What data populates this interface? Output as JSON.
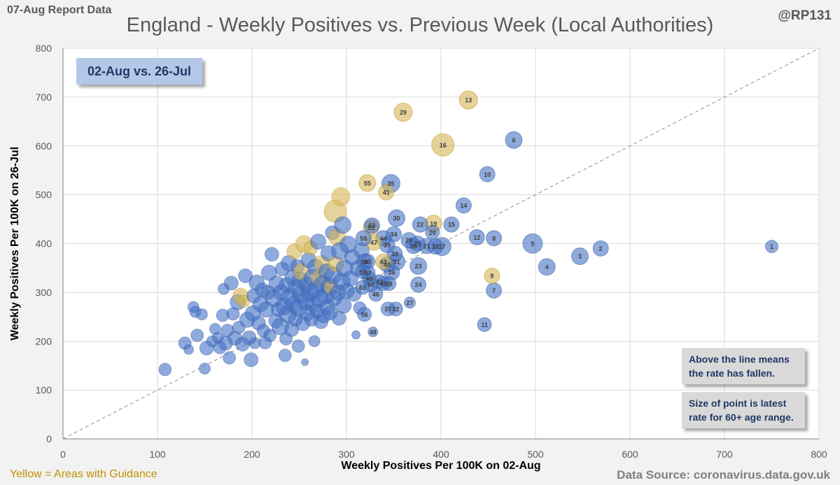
{
  "header": {
    "report_label": "07-Aug Report Data",
    "title": "England - Weekly Positives vs. Previous Week (Local Authorities)",
    "handle": "@RP131"
  },
  "annotations": {
    "period": "02-Aug vs. 26-Jul",
    "above_line_note": "Above the line means the rate has fallen.",
    "size_note": "Size of point is latest rate for 60+ age range."
  },
  "footer": {
    "legend_yellow": "Yellow = Areas with Guidance",
    "data_source": "Data Source: coronavirus.data.gov.uk"
  },
  "colors": {
    "blue": "#4472c4",
    "blue_dark": "#2f5597",
    "yellow": "#d6b656",
    "grid": "#d9d9d9",
    "axis_text": "#595959"
  },
  "chart_data": {
    "type": "scatter",
    "title": "England - Weekly Positives vs. Previous Week (Local Authorities)",
    "xlabel": "Weekly Positives Per 100K on 02-Aug",
    "ylabel": "Weekly Positives Per 100K on 26-Jul",
    "xlim": [
      0,
      800
    ],
    "ylim": [
      0,
      800
    ],
    "xticks": [
      0,
      100,
      200,
      300,
      400,
      500,
      600,
      700,
      800
    ],
    "yticks": [
      0,
      100,
      200,
      300,
      400,
      500,
      600,
      700,
      800
    ],
    "grid": true,
    "reference_line": "y = x",
    "labeled_points": [
      {
        "label": "1",
        "x": 750,
        "y": 394,
        "r": 9,
        "group": "blue"
      },
      {
        "label": "3",
        "x": 547,
        "y": 374,
        "r": 12,
        "group": "blue"
      },
      {
        "label": "4",
        "x": 512,
        "y": 352,
        "r": 12,
        "group": "blue"
      },
      {
        "label": "5",
        "x": 497,
        "y": 400,
        "r": 14,
        "group": "blue"
      },
      {
        "label": "6",
        "x": 477,
        "y": 612,
        "r": 12,
        "group": "blue"
      },
      {
        "label": "2",
        "x": 569,
        "y": 390,
        "r": 11,
        "group": "blue"
      },
      {
        "label": "7",
        "x": 456,
        "y": 304,
        "r": 11,
        "group": "blue"
      },
      {
        "label": "8",
        "x": 456,
        "y": 411,
        "r": 11,
        "group": "blue"
      },
      {
        "label": "9",
        "x": 454,
        "y": 334,
        "r": 11,
        "group": "yellow"
      },
      {
        "label": "10",
        "x": 449,
        "y": 542,
        "r": 11,
        "group": "blue"
      },
      {
        "label": "11",
        "x": 446,
        "y": 234,
        "r": 10,
        "group": "blue"
      },
      {
        "label": "12",
        "x": 438,
        "y": 413,
        "r": 11,
        "group": "blue"
      },
      {
        "label": "13",
        "x": 429,
        "y": 694,
        "r": 13,
        "group": "yellow"
      },
      {
        "label": "14",
        "x": 424,
        "y": 478,
        "r": 11,
        "group": "blue"
      },
      {
        "label": "15",
        "x": 411,
        "y": 439,
        "r": 11,
        "group": "blue"
      },
      {
        "label": "16",
        "x": 402,
        "y": 602,
        "r": 16,
        "group": "yellow"
      },
      {
        "label": "17",
        "x": 401,
        "y": 394,
        "r": 13,
        "group": "blue"
      },
      {
        "label": "18",
        "x": 394,
        "y": 394,
        "r": 11,
        "group": "blue"
      },
      {
        "label": "19",
        "x": 392,
        "y": 441,
        "r": 12,
        "group": "yellow"
      },
      {
        "label": "20",
        "x": 391,
        "y": 423,
        "r": 10,
        "group": "blue"
      },
      {
        "label": "21",
        "x": 385,
        "y": 395,
        "r": 11,
        "group": "blue"
      },
      {
        "label": "22",
        "x": 378,
        "y": 439,
        "r": 11,
        "group": "blue"
      },
      {
        "label": "23",
        "x": 376,
        "y": 354,
        "r": 12,
        "group": "blue"
      },
      {
        "label": "24",
        "x": 376,
        "y": 316,
        "r": 11,
        "group": "blue"
      },
      {
        "label": "25",
        "x": 375,
        "y": 400,
        "r": 11,
        "group": "blue"
      },
      {
        "label": "26",
        "x": 371,
        "y": 395,
        "r": 11,
        "group": "blue"
      },
      {
        "label": "27",
        "x": 367,
        "y": 279,
        "r": 8,
        "group": "blue"
      },
      {
        "label": "28",
        "x": 366,
        "y": 407,
        "r": 11,
        "group": "blue"
      },
      {
        "label": "29",
        "x": 360,
        "y": 669,
        "r": 13,
        "group": "yellow"
      },
      {
        "label": "30",
        "x": 353,
        "y": 452,
        "r": 12,
        "group": "blue"
      },
      {
        "label": "31",
        "x": 353,
        "y": 363,
        "r": 12,
        "group": "blue"
      },
      {
        "label": "32",
        "x": 352,
        "y": 266,
        "r": 10,
        "group": "blue"
      },
      {
        "label": "33",
        "x": 351,
        "y": 379,
        "r": 11,
        "group": "blue"
      },
      {
        "label": "34",
        "x": 350,
        "y": 419,
        "r": 11,
        "group": "blue"
      },
      {
        "label": "35",
        "x": 347,
        "y": 523,
        "r": 13,
        "group": "blue"
      },
      {
        "label": "36",
        "x": 348,
        "y": 341,
        "r": 11,
        "group": "blue"
      },
      {
        "label": "37",
        "x": 344,
        "y": 266,
        "r": 10,
        "group": "blue"
      },
      {
        "label": "38",
        "x": 345,
        "y": 318,
        "r": 10,
        "group": "blue"
      },
      {
        "label": "39",
        "x": 343,
        "y": 397,
        "r": 11,
        "group": "blue"
      },
      {
        "label": "40",
        "x": 343,
        "y": 357,
        "r": 11,
        "group": "blue"
      },
      {
        "label": "41",
        "x": 342,
        "y": 505,
        "r": 11,
        "group": "yellow"
      },
      {
        "label": "42",
        "x": 335,
        "y": 322,
        "r": 10,
        "group": "blue"
      },
      {
        "label": "43",
        "x": 339,
        "y": 363,
        "r": 11,
        "group": "yellow"
      },
      {
        "label": "44",
        "x": 339,
        "y": 411,
        "r": 11,
        "group": "blue"
      },
      {
        "label": "45",
        "x": 339,
        "y": 318,
        "r": 10,
        "group": "blue"
      },
      {
        "label": "46",
        "x": 331,
        "y": 296,
        "r": 10,
        "group": "blue"
      },
      {
        "label": "47",
        "x": 329,
        "y": 402,
        "r": 11,
        "group": "yellow"
      },
      {
        "label": "48",
        "x": 328,
        "y": 219,
        "r": 7,
        "group": "blue"
      },
      {
        "label": "49",
        "x": 324,
        "y": 328,
        "r": 10,
        "group": "blue"
      },
      {
        "label": "50",
        "x": 322,
        "y": 363,
        "r": 11,
        "group": "blue"
      },
      {
        "label": "51",
        "x": 326,
        "y": 433,
        "r": 11,
        "group": "yellow"
      },
      {
        "label": "52",
        "x": 326,
        "y": 316,
        "r": 10,
        "group": "blue"
      },
      {
        "label": "53",
        "x": 327,
        "y": 437,
        "r": 11,
        "group": "blue"
      },
      {
        "label": "54",
        "x": 319,
        "y": 363,
        "r": 11,
        "group": "blue"
      },
      {
        "label": "55",
        "x": 322,
        "y": 524,
        "r": 12,
        "group": "yellow"
      },
      {
        "label": "56",
        "x": 319,
        "y": 255,
        "r": 10,
        "group": "blue"
      },
      {
        "label": "57",
        "x": 323,
        "y": 340,
        "r": 10,
        "group": "blue"
      },
      {
        "label": "58",
        "x": 318,
        "y": 411,
        "r": 11,
        "group": "blue"
      },
      {
        "label": "59",
        "x": 317,
        "y": 342,
        "r": 10,
        "group": "blue"
      },
      {
        "label": "60",
        "x": 317,
        "y": 310,
        "r": 10,
        "group": "blue"
      }
    ],
    "unlabeled_points": [
      {
        "x": 108,
        "y": 142,
        "r": 9,
        "group": "blue"
      },
      {
        "x": 129,
        "y": 196,
        "r": 9,
        "group": "blue"
      },
      {
        "x": 133,
        "y": 183,
        "r": 7,
        "group": "blue"
      },
      {
        "x": 138,
        "y": 270,
        "r": 8,
        "group": "blue"
      },
      {
        "x": 140,
        "y": 260,
        "r": 8,
        "group": "blue"
      },
      {
        "x": 142,
        "y": 212,
        "r": 9,
        "group": "blue"
      },
      {
        "x": 147,
        "y": 255,
        "r": 8,
        "group": "blue"
      },
      {
        "x": 150,
        "y": 144,
        "r": 8,
        "group": "blue"
      },
      {
        "x": 152,
        "y": 186,
        "r": 10,
        "group": "blue"
      },
      {
        "x": 158,
        "y": 200,
        "r": 8,
        "group": "blue"
      },
      {
        "x": 161,
        "y": 225,
        "r": 8,
        "group": "blue"
      },
      {
        "x": 164,
        "y": 207,
        "r": 8,
        "group": "blue"
      },
      {
        "x": 166,
        "y": 187,
        "r": 9,
        "group": "blue"
      },
      {
        "x": 169,
        "y": 253,
        "r": 9,
        "group": "blue"
      },
      {
        "x": 170,
        "y": 307,
        "r": 8,
        "group": "blue"
      },
      {
        "x": 172,
        "y": 196,
        "r": 10,
        "group": "blue"
      },
      {
        "x": 174,
        "y": 222,
        "r": 9,
        "group": "blue"
      },
      {
        "x": 176,
        "y": 166,
        "r": 9,
        "group": "blue"
      },
      {
        "x": 178,
        "y": 319,
        "r": 10,
        "group": "blue"
      },
      {
        "x": 180,
        "y": 256,
        "r": 9,
        "group": "blue"
      },
      {
        "x": 182,
        "y": 206,
        "r": 10,
        "group": "blue"
      },
      {
        "x": 185,
        "y": 280,
        "r": 11,
        "group": "blue"
      },
      {
        "x": 186,
        "y": 228,
        "r": 9,
        "group": "blue"
      },
      {
        "x": 188,
        "y": 293,
        "r": 11,
        "group": "yellow"
      },
      {
        "x": 190,
        "y": 194,
        "r": 10,
        "group": "blue"
      },
      {
        "x": 191,
        "y": 282,
        "r": 9,
        "group": "yellow"
      },
      {
        "x": 193,
        "y": 334,
        "r": 10,
        "group": "blue"
      },
      {
        "x": 195,
        "y": 244,
        "r": 11,
        "group": "blue"
      },
      {
        "x": 197,
        "y": 207,
        "r": 10,
        "group": "blue"
      },
      {
        "x": 199,
        "y": 162,
        "r": 10,
        "group": "blue"
      },
      {
        "x": 201,
        "y": 257,
        "r": 11,
        "group": "blue"
      },
      {
        "x": 202,
        "y": 293,
        "r": 10,
        "group": "blue"
      },
      {
        "x": 203,
        "y": 196,
        "r": 8,
        "group": "blue"
      },
      {
        "x": 205,
        "y": 320,
        "r": 11,
        "group": "blue"
      },
      {
        "x": 207,
        "y": 237,
        "r": 10,
        "group": "blue"
      },
      {
        "x": 209,
        "y": 276,
        "r": 11,
        "group": "blue"
      },
      {
        "x": 211,
        "y": 305,
        "r": 10,
        "group": "blue"
      },
      {
        "x": 212,
        "y": 222,
        "r": 9,
        "group": "blue"
      },
      {
        "x": 214,
        "y": 197,
        "r": 9,
        "group": "blue"
      },
      {
        "x": 215,
        "y": 265,
        "r": 11,
        "group": "blue"
      },
      {
        "x": 217,
        "y": 300,
        "r": 10,
        "group": "blue"
      },
      {
        "x": 218,
        "y": 340,
        "r": 11,
        "group": "blue"
      },
      {
        "x": 219,
        "y": 212,
        "r": 9,
        "group": "blue"
      },
      {
        "x": 221,
        "y": 378,
        "r": 10,
        "group": "blue"
      },
      {
        "x": 223,
        "y": 288,
        "r": 12,
        "group": "blue"
      },
      {
        "x": 225,
        "y": 242,
        "r": 10,
        "group": "blue"
      },
      {
        "x": 226,
        "y": 318,
        "r": 11,
        "group": "blue"
      },
      {
        "x": 228,
        "y": 265,
        "r": 10,
        "group": "blue"
      },
      {
        "x": 230,
        "y": 230,
        "r": 12,
        "group": "blue"
      },
      {
        "x": 231,
        "y": 300,
        "r": 11,
        "group": "blue"
      },
      {
        "x": 232,
        "y": 348,
        "r": 10,
        "group": "blue"
      },
      {
        "x": 234,
        "y": 271,
        "r": 12,
        "group": "blue"
      },
      {
        "x": 235,
        "y": 171,
        "r": 9,
        "group": "blue"
      },
      {
        "x": 236,
        "y": 205,
        "r": 9,
        "group": "blue"
      },
      {
        "x": 237,
        "y": 315,
        "r": 11,
        "group": "blue"
      },
      {
        "x": 238,
        "y": 255,
        "r": 12,
        "group": "blue"
      },
      {
        "x": 239,
        "y": 360,
        "r": 11,
        "group": "blue"
      },
      {
        "x": 240,
        "y": 290,
        "r": 12,
        "group": "blue"
      },
      {
        "x": 242,
        "y": 224,
        "r": 10,
        "group": "blue"
      },
      {
        "x": 243,
        "y": 330,
        "r": 11,
        "group": "blue"
      },
      {
        "x": 244,
        "y": 275,
        "r": 12,
        "group": "blue"
      },
      {
        "x": 245,
        "y": 384,
        "r": 11,
        "group": "yellow"
      },
      {
        "x": 246,
        "y": 245,
        "r": 10,
        "group": "blue"
      },
      {
        "x": 247,
        "y": 309,
        "r": 12,
        "group": "blue"
      },
      {
        "x": 248,
        "y": 353,
        "r": 10,
        "group": "blue"
      },
      {
        "x": 249,
        "y": 190,
        "r": 9,
        "group": "blue"
      },
      {
        "x": 250,
        "y": 268,
        "r": 12,
        "group": "blue"
      },
      {
        "x": 251,
        "y": 326,
        "r": 11,
        "group": "blue"
      },
      {
        "x": 252,
        "y": 296,
        "r": 12,
        "group": "blue"
      },
      {
        "x": 253,
        "y": 342,
        "r": 12,
        "group": "yellow"
      },
      {
        "x": 254,
        "y": 236,
        "r": 10,
        "group": "blue"
      },
      {
        "x": 255,
        "y": 399,
        "r": 12,
        "group": "yellow"
      },
      {
        "x": 256,
        "y": 157,
        "r": 5,
        "group": "blue"
      },
      {
        "x": 257,
        "y": 282,
        "r": 12,
        "group": "blue"
      },
      {
        "x": 258,
        "y": 316,
        "r": 11,
        "group": "blue"
      },
      {
        "x": 259,
        "y": 258,
        "r": 11,
        "group": "blue"
      },
      {
        "x": 260,
        "y": 366,
        "r": 11,
        "group": "blue"
      },
      {
        "x": 261,
        "y": 299,
        "r": 12,
        "group": "blue"
      },
      {
        "x": 262,
        "y": 391,
        "r": 10,
        "group": "yellow"
      },
      {
        "x": 263,
        "y": 245,
        "r": 10,
        "group": "blue"
      },
      {
        "x": 264,
        "y": 330,
        "r": 12,
        "group": "blue"
      },
      {
        "x": 265,
        "y": 275,
        "r": 11,
        "group": "blue"
      },
      {
        "x": 266,
        "y": 200,
        "r": 8,
        "group": "blue"
      },
      {
        "x": 267,
        "y": 352,
        "r": 11,
        "group": "blue"
      },
      {
        "x": 268,
        "y": 307,
        "r": 12,
        "group": "blue"
      },
      {
        "x": 269,
        "y": 262,
        "r": 10,
        "group": "blue"
      },
      {
        "x": 270,
        "y": 404,
        "r": 11,
        "group": "blue"
      },
      {
        "x": 271,
        "y": 330,
        "r": 11,
        "group": "yellow"
      },
      {
        "x": 272,
        "y": 287,
        "r": 12,
        "group": "blue"
      },
      {
        "x": 273,
        "y": 240,
        "r": 10,
        "group": "blue"
      },
      {
        "x": 274,
        "y": 360,
        "r": 11,
        "group": "yellow"
      },
      {
        "x": 275,
        "y": 318,
        "r": 12,
        "group": "blue"
      },
      {
        "x": 276,
        "y": 252,
        "r": 10,
        "group": "blue"
      },
      {
        "x": 278,
        "y": 294,
        "r": 12,
        "group": "blue"
      },
      {
        "x": 279,
        "y": 343,
        "r": 11,
        "group": "blue"
      },
      {
        "x": 280,
        "y": 270,
        "r": 11,
        "group": "blue"
      },
      {
        "x": 281,
        "y": 380,
        "r": 11,
        "group": "blue"
      },
      {
        "x": 282,
        "y": 312,
        "r": 12,
        "group": "blue"
      },
      {
        "x": 283,
        "y": 258,
        "r": 10,
        "group": "blue"
      },
      {
        "x": 284,
        "y": 310,
        "r": 10,
        "group": "yellow"
      },
      {
        "x": 285,
        "y": 422,
        "r": 10,
        "group": "blue"
      },
      {
        "x": 286,
        "y": 335,
        "r": 12,
        "group": "blue"
      },
      {
        "x": 287,
        "y": 288,
        "r": 11,
        "group": "blue"
      },
      {
        "x": 288,
        "y": 466,
        "r": 16,
        "group": "yellow"
      },
      {
        "x": 289,
        "y": 358,
        "r": 11,
        "group": "yellow"
      },
      {
        "x": 290,
        "y": 413,
        "r": 12,
        "group": "yellow"
      },
      {
        "x": 291,
        "y": 300,
        "r": 11,
        "group": "blue"
      },
      {
        "x": 292,
        "y": 247,
        "r": 10,
        "group": "blue"
      },
      {
        "x": 293,
        "y": 385,
        "r": 12,
        "group": "blue"
      },
      {
        "x": 294,
        "y": 496,
        "r": 13,
        "group": "yellow"
      },
      {
        "x": 295,
        "y": 322,
        "r": 12,
        "group": "blue"
      },
      {
        "x": 296,
        "y": 438,
        "r": 12,
        "group": "blue"
      },
      {
        "x": 297,
        "y": 273,
        "r": 11,
        "group": "blue"
      },
      {
        "x": 298,
        "y": 350,
        "r": 12,
        "group": "blue"
      },
      {
        "x": 300,
        "y": 303,
        "r": 11,
        "group": "blue"
      },
      {
        "x": 302,
        "y": 398,
        "r": 12,
        "group": "blue"
      },
      {
        "x": 304,
        "y": 328,
        "r": 11,
        "group": "blue"
      },
      {
        "x": 306,
        "y": 372,
        "r": 11,
        "group": "blue"
      },
      {
        "x": 308,
        "y": 296,
        "r": 10,
        "group": "blue"
      },
      {
        "x": 310,
        "y": 213,
        "r": 6,
        "group": "blue"
      },
      {
        "x": 312,
        "y": 349,
        "r": 11,
        "group": "blue"
      },
      {
        "x": 314,
        "y": 268,
        "r": 9,
        "group": "blue"
      },
      {
        "x": 316,
        "y": 386,
        "r": 11,
        "group": "blue"
      }
    ]
  }
}
